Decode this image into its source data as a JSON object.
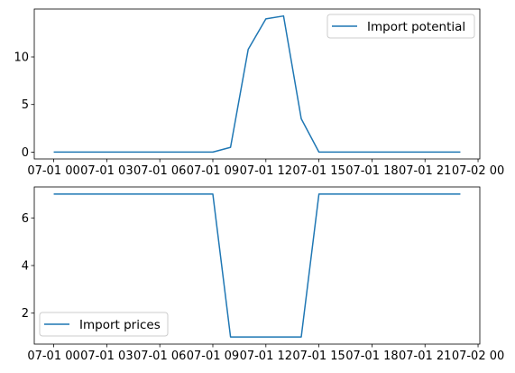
{
  "chart_data": [
    {
      "type": "line",
      "x_ticks": [
        "07-01 00",
        "07-01 03",
        "07-01 06",
        "07-01 09",
        "07-01 12",
        "07-01 15",
        "07-01 18",
        "07-01 21",
        "07-02 00"
      ],
      "x": [
        "07-01 00",
        "07-01 01",
        "07-01 02",
        "07-01 03",
        "07-01 04",
        "07-01 05",
        "07-01 06",
        "07-01 07",
        "07-01 08",
        "07-01 09",
        "07-01 10",
        "07-01 11",
        "07-01 12",
        "07-01 13",
        "07-01 14",
        "07-01 15",
        "07-01 16",
        "07-01 17",
        "07-01 18",
        "07-01 19",
        "07-01 20",
        "07-01 21",
        "07-01 22",
        "07-01 23"
      ],
      "xlim_hours": [
        -1.1,
        24.1
      ],
      "series": [
        {
          "name": "Import potential",
          "color": "#1f77b4",
          "values": [
            0,
            0,
            0,
            0,
            0,
            0,
            0,
            0,
            0,
            0,
            0.5,
            10.8,
            14.0,
            14.3,
            3.5,
            0,
            0,
            0,
            0,
            0,
            0,
            0,
            0,
            0
          ]
        }
      ],
      "y_ticks": [
        0,
        5,
        10
      ],
      "ylim": [
        -0.72,
        15.03
      ],
      "legend": "upper right",
      "grid": false
    },
    {
      "type": "line",
      "x_ticks": [
        "07-01 00",
        "07-01 03",
        "07-01 06",
        "07-01 09",
        "07-01 12",
        "07-01 15",
        "07-01 18",
        "07-01 21",
        "07-02 00"
      ],
      "x": [
        "07-01 00",
        "07-01 01",
        "07-01 02",
        "07-01 03",
        "07-01 04",
        "07-01 05",
        "07-01 06",
        "07-01 07",
        "07-01 08",
        "07-01 09",
        "07-01 10",
        "07-01 11",
        "07-01 12",
        "07-01 13",
        "07-01 14",
        "07-01 15",
        "07-01 16",
        "07-01 17",
        "07-01 18",
        "07-01 19",
        "07-01 20",
        "07-01 21",
        "07-01 22",
        "07-01 23"
      ],
      "xlim_hours": [
        -1.1,
        24.1
      ],
      "series": [
        {
          "name": "Import prices",
          "color": "#1f77b4",
          "values": [
            7,
            7,
            7,
            7,
            7,
            7,
            7,
            7,
            7,
            7,
            1,
            1,
            1,
            1,
            1,
            7,
            7,
            7,
            7,
            7,
            7,
            7,
            7,
            7
          ]
        }
      ],
      "y_ticks": [
        2,
        4,
        6
      ],
      "ylim": [
        0.7,
        7.3
      ],
      "legend": "lower left",
      "grid": false
    }
  ]
}
